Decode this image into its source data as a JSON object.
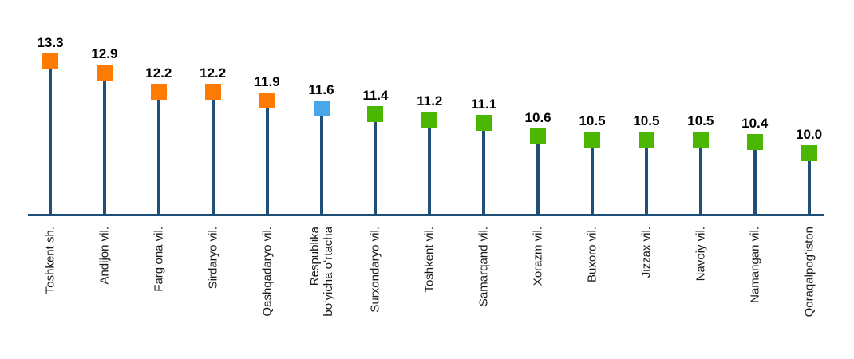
{
  "chart_data": {
    "type": "bar",
    "style": "lollipop",
    "title": "",
    "xlabel": "",
    "ylabel": "",
    "categories": [
      "Toshkent sh.",
      "Andijon vil.",
      "Fargʻona vil.",
      "Sirdaryo vil.",
      "Qashqadaryo vil.",
      "Respublika\nboʻyicha oʻrtacha",
      "Surxondaryo vil.",
      "Toshkent vil.",
      "Samarqand vil.",
      "Xorazm vil.",
      "Buxoro vil.",
      "Jizzax vil.",
      "Navoiy vil.",
      "Namangan vil.",
      "Qoraqalpogʻiston"
    ],
    "values": [
      13.3,
      12.9,
      12.2,
      12.2,
      11.9,
      11.6,
      11.4,
      11.2,
      11.1,
      10.6,
      10.5,
      10.5,
      10.5,
      10.4,
      10.0
    ],
    "point_colors": [
      "orange",
      "orange",
      "orange",
      "orange",
      "orange",
      "blue",
      "green",
      "green",
      "green",
      "green",
      "green",
      "green",
      "green",
      "green",
      "green"
    ],
    "palette": {
      "orange": "#FF7A00",
      "blue": "#47A7E8",
      "green": "#4CB700",
      "stem": "#1F4E79",
      "axis": "#1F4E79",
      "value_text": "#000000",
      "category_text": "#1A1A1A"
    },
    "ylim": [
      7.8,
      13.8
    ],
    "grid": false,
    "legend": false
  }
}
